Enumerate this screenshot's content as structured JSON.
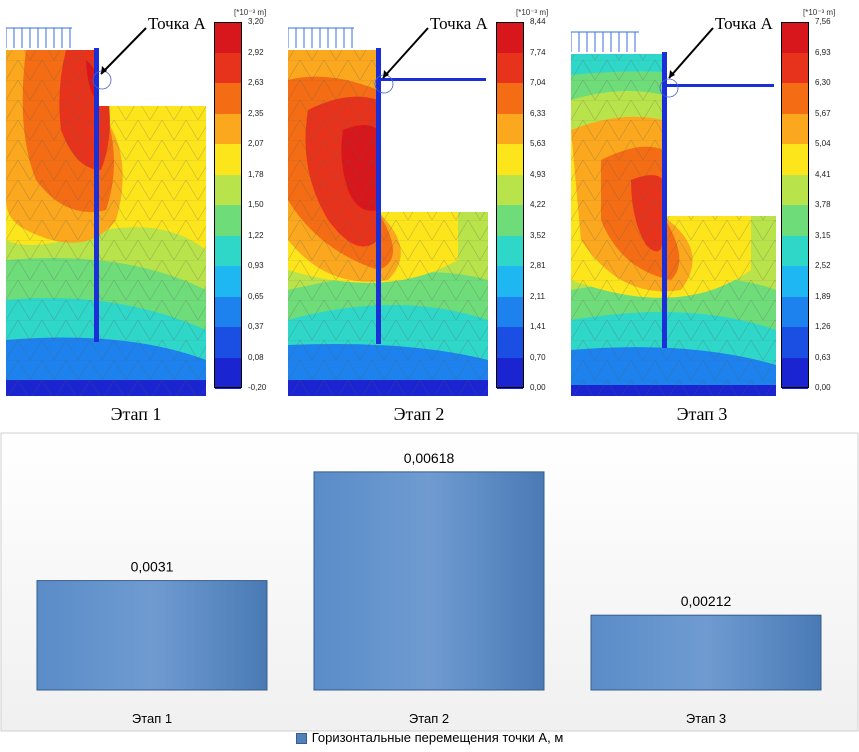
{
  "figures": [
    {
      "caption": "Этап 1",
      "point_label": "Точка А",
      "scale_unit": "[*10⁻³ m]",
      "scale_ticks": [
        "3,20",
        "2,92",
        "2,63",
        "2,35",
        "2,07",
        "1,78",
        "1,50",
        "1,22",
        "0,93",
        "0,65",
        "0,37",
        "0,08",
        "-0,20"
      ],
      "has_strut": false
    },
    {
      "caption": "Этап 2",
      "point_label": "Точка А",
      "scale_unit": "[*10⁻³ m]",
      "scale_ticks": [
        "8,44",
        "7,74",
        "7,04",
        "6,33",
        "5,63",
        "4,93",
        "4,22",
        "3,52",
        "2,81",
        "2,11",
        "1,41",
        "0,70",
        "0,00"
      ],
      "has_strut": true
    },
    {
      "caption": "Этап 3",
      "point_label": "Точка А",
      "scale_unit": "[*10⁻³ m]",
      "scale_ticks": [
        "7,56",
        "6,93",
        "6,30",
        "5,67",
        "5,04",
        "4,41",
        "3,78",
        "3,15",
        "2,52",
        "1,89",
        "1,26",
        "0,63",
        "0,00"
      ],
      "has_strut": true
    }
  ],
  "colors": {
    "scale": [
      "#d7171c",
      "#e8331c",
      "#f46d14",
      "#fba81e",
      "#fde51c",
      "#b9e34a",
      "#6fdc7a",
      "#2fd7c9",
      "#1fb7f2",
      "#1d82ee",
      "#1b4fe4",
      "#1a24d0"
    ],
    "bar_fill": "#4f81bd",
    "bar_border": "#385d8a",
    "wall": "#1a2fd8"
  },
  "chart_data": {
    "type": "bar",
    "categories": [
      "Этап 1",
      "Этап 2",
      "Этап 3"
    ],
    "series": [
      {
        "name": "Горизонтальные перемещения точки А, м",
        "values": [
          0.0031,
          0.00618,
          0.00212
        ]
      }
    ],
    "data_labels": [
      "0,0031",
      "0,00618",
      "0,00212"
    ],
    "ylim": [
      0,
      0.0068
    ],
    "grid": false,
    "legend": "bottom"
  }
}
